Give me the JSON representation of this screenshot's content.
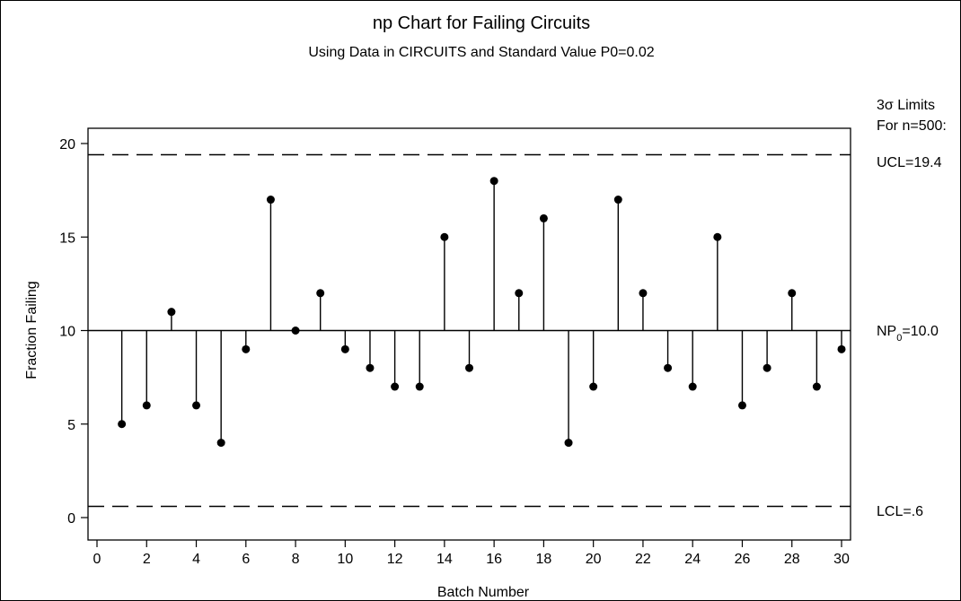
{
  "chart_data": {
    "type": "scatter",
    "title": "np Chart for Failing Circuits",
    "subtitle": "Using Data in CIRCUITS and Standard Value P0=0.02",
    "xlabel": "Batch Number",
    "ylabel": "Fraction Failing",
    "xlim": [
      0,
      30
    ],
    "ylim": [
      0,
      20
    ],
    "x_ticks": [
      0,
      2,
      4,
      6,
      8,
      10,
      12,
      14,
      16,
      18,
      20,
      22,
      24,
      26,
      28,
      30
    ],
    "y_ticks": [
      0,
      5,
      10,
      15,
      20
    ],
    "grid": false,
    "x": [
      1,
      2,
      3,
      4,
      5,
      6,
      7,
      8,
      9,
      10,
      11,
      12,
      13,
      14,
      15,
      16,
      17,
      18,
      19,
      20,
      21,
      22,
      23,
      24,
      25,
      26,
      27,
      28,
      29,
      30
    ],
    "values": [
      5,
      6,
      11,
      6,
      4,
      9,
      17,
      10,
      12,
      9,
      8,
      7,
      7,
      15,
      8,
      18,
      12,
      16,
      4,
      7,
      17,
      12,
      8,
      7,
      15,
      6,
      8,
      12,
      7,
      9
    ],
    "center_line": 10.0,
    "ucl": 19.4,
    "lcl": 0.6,
    "limits_header": [
      "3σ Limits",
      "For n=500:"
    ],
    "ucl_label": "UCL=19.4",
    "center_label_main": "NP",
    "center_label_sub": "0",
    "center_label_rest": "=10.0",
    "lcl_label": "LCL=.6"
  }
}
